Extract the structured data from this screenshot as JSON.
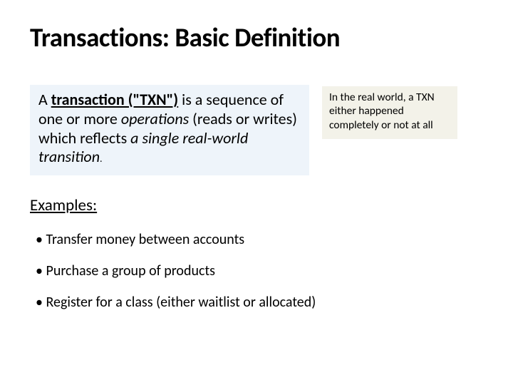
{
  "title": "Transactions: Basic Definition",
  "definition": {
    "prefix": "A ",
    "txn_term": "transaction (\"TXN\")",
    "mid1": " is a sequence of one or more ",
    "operations_word": "operations ",
    "mid2": "(reads or writes) which reflects ",
    "emphasis": "a single real-world transition",
    "period": "."
  },
  "sidebar_note": "In the real world, a TXN either happened completely or not at all",
  "examples_label": "Examples:",
  "examples": [
    "Transfer money between accounts",
    "Purchase a group of products",
    "Register for a class (either waitlist or allocated)"
  ],
  "colors": {
    "def_box_bg": "#eef4fa",
    "side_box_bg": "#f3f2e9",
    "page_bg": "#ffffff",
    "text": "#000000"
  },
  "fontsizes": {
    "title": 37,
    "definition": 22,
    "sidebar": 15.5,
    "examples_label": 23,
    "bullet": 20
  }
}
